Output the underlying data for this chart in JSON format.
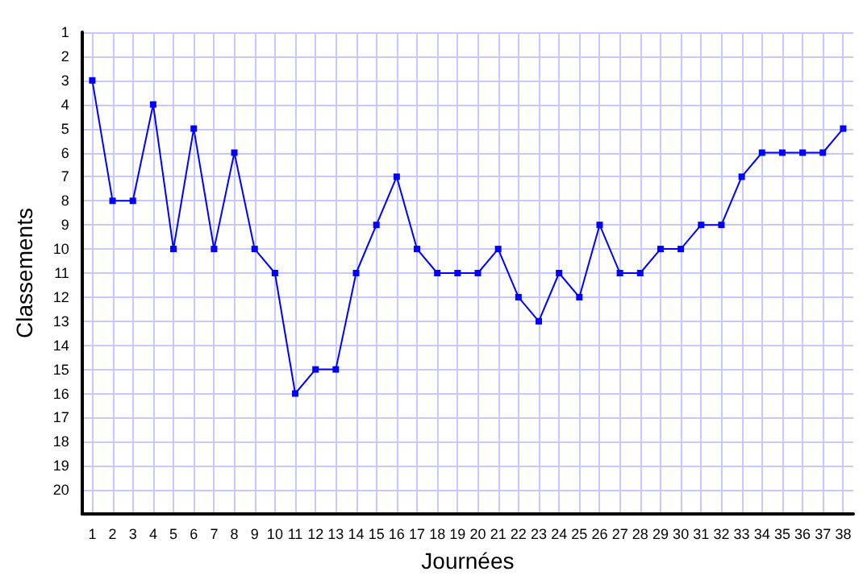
{
  "chart_data": {
    "type": "line",
    "xlabel": "Journées",
    "ylabel": "Classements",
    "x": [
      1,
      2,
      3,
      4,
      5,
      6,
      7,
      8,
      9,
      10,
      11,
      12,
      13,
      14,
      15,
      16,
      17,
      18,
      19,
      20,
      21,
      22,
      23,
      24,
      25,
      26,
      27,
      28,
      29,
      30,
      31,
      32,
      33,
      34,
      35,
      36,
      37,
      38
    ],
    "series": [
      {
        "color": "#0000ff",
        "values": [
          3,
          8,
          8,
          4,
          10,
          5,
          10,
          6,
          10,
          11,
          16,
          15,
          15,
          11,
          9,
          7,
          10,
          11,
          11,
          11,
          10,
          12,
          13,
          11,
          12,
          9,
          11,
          11,
          10,
          10,
          9,
          9,
          7,
          6,
          6,
          6,
          6,
          5
        ]
      }
    ],
    "xlim": [
      0.5,
      38.5
    ],
    "xticks": [
      1,
      2,
      3,
      4,
      5,
      6,
      7,
      8,
      9,
      10,
      11,
      12,
      13,
      14,
      15,
      16,
      17,
      18,
      19,
      20,
      21,
      22,
      23,
      24,
      25,
      26,
      27,
      28,
      29,
      30,
      31,
      32,
      33,
      34,
      35,
      36,
      37,
      38
    ],
    "ylim": [
      21,
      1
    ],
    "yticks": [
      1,
      2,
      3,
      4,
      5,
      6,
      7,
      8,
      9,
      10,
      11,
      12,
      13,
      14,
      15,
      16,
      17,
      18,
      19,
      20
    ],
    "grid": true,
    "marker": "square",
    "line_style": "solid"
  }
}
